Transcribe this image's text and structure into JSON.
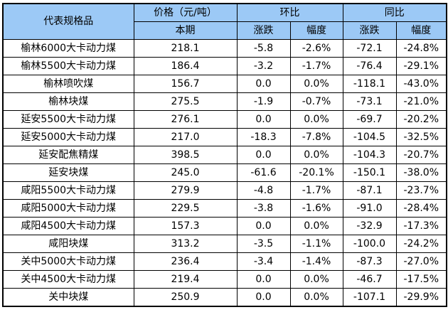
{
  "table": {
    "header": {
      "product": "代表规格品",
      "price_group": "价格（元/吨）",
      "mom_group": "环比",
      "yoy_group": "同比",
      "current": "本期",
      "mom_change": "涨跌",
      "mom_rate": "幅度",
      "yoy_change": "涨跌",
      "yoy_rate": "幅度"
    },
    "rows": [
      {
        "name": "榆林6000大卡动力煤",
        "price": "218.1",
        "mom_change": "-5.8",
        "mom_rate": "-2.6%",
        "yoy_change": "-72.1",
        "yoy_rate": "-24.8%"
      },
      {
        "name": "榆林5500大卡动力煤",
        "price": "186.4",
        "mom_change": "-3.2",
        "mom_rate": "-1.7%",
        "yoy_change": "-76.4",
        "yoy_rate": "-29.1%"
      },
      {
        "name": "榆林喷吹煤",
        "price": "156.7",
        "mom_change": "0.0",
        "mom_rate": "0.0%",
        "yoy_change": "-118.1",
        "yoy_rate": "-43.0%"
      },
      {
        "name": "榆林块煤",
        "price": "275.5",
        "mom_change": "-1.9",
        "mom_rate": "-0.7%",
        "yoy_change": "-73.1",
        "yoy_rate": "-21.0%"
      },
      {
        "name": "延安5500大卡动力煤",
        "price": "276.1",
        "mom_change": "0.0",
        "mom_rate": "0.0%",
        "yoy_change": "-69.7",
        "yoy_rate": "-20.2%"
      },
      {
        "name": "延安5000大卡动力煤",
        "price": "217.0",
        "mom_change": "-18.3",
        "mom_rate": "-7.8%",
        "yoy_change": "-104.5",
        "yoy_rate": "-32.5%"
      },
      {
        "name": "延安配焦精煤",
        "price": "398.5",
        "mom_change": "0.0",
        "mom_rate": "0.0%",
        "yoy_change": "-104.3",
        "yoy_rate": "-20.7%"
      },
      {
        "name": "延安块煤",
        "price": "245.0",
        "mom_change": "-61.6",
        "mom_rate": "-20.1%",
        "yoy_change": "-150.1",
        "yoy_rate": "-38.0%"
      },
      {
        "name": "咸阳5500大卡动力煤",
        "price": "279.9",
        "mom_change": "-4.8",
        "mom_rate": "-1.7%",
        "yoy_change": "-87.1",
        "yoy_rate": "-23.7%"
      },
      {
        "name": "咸阳5000大卡动力煤",
        "price": "229.5",
        "mom_change": "-3.8",
        "mom_rate": "-1.6%",
        "yoy_change": "-91.0",
        "yoy_rate": "-28.4%"
      },
      {
        "name": "咸阳4500大卡动力煤",
        "price": "157.3",
        "mom_change": "0.0",
        "mom_rate": "0.0%",
        "yoy_change": "-32.9",
        "yoy_rate": "-17.3%"
      },
      {
        "name": "咸阳块煤",
        "price": "313.2",
        "mom_change": "-3.5",
        "mom_rate": "-1.1%",
        "yoy_change": "-100.0",
        "yoy_rate": "-24.2%"
      },
      {
        "name": "关中5000大卡动力煤",
        "price": "236.4",
        "mom_change": "-3.4",
        "mom_rate": "-1.4%",
        "yoy_change": "-87.3",
        "yoy_rate": "-27.0%"
      },
      {
        "name": "关中4500大卡动力煤",
        "price": "219.4",
        "mom_change": "0.0",
        "mom_rate": "0.0%",
        "yoy_change": "-46.7",
        "yoy_rate": "-17.5%"
      },
      {
        "name": "关中块煤",
        "price": "250.9",
        "mom_change": "0.0",
        "mom_rate": "0.0%",
        "yoy_change": "-107.1",
        "yoy_rate": "-29.9%"
      }
    ],
    "colors": {
      "header_fill": "#9cc9f6",
      "border": "#000000",
      "text": "#000000"
    }
  }
}
